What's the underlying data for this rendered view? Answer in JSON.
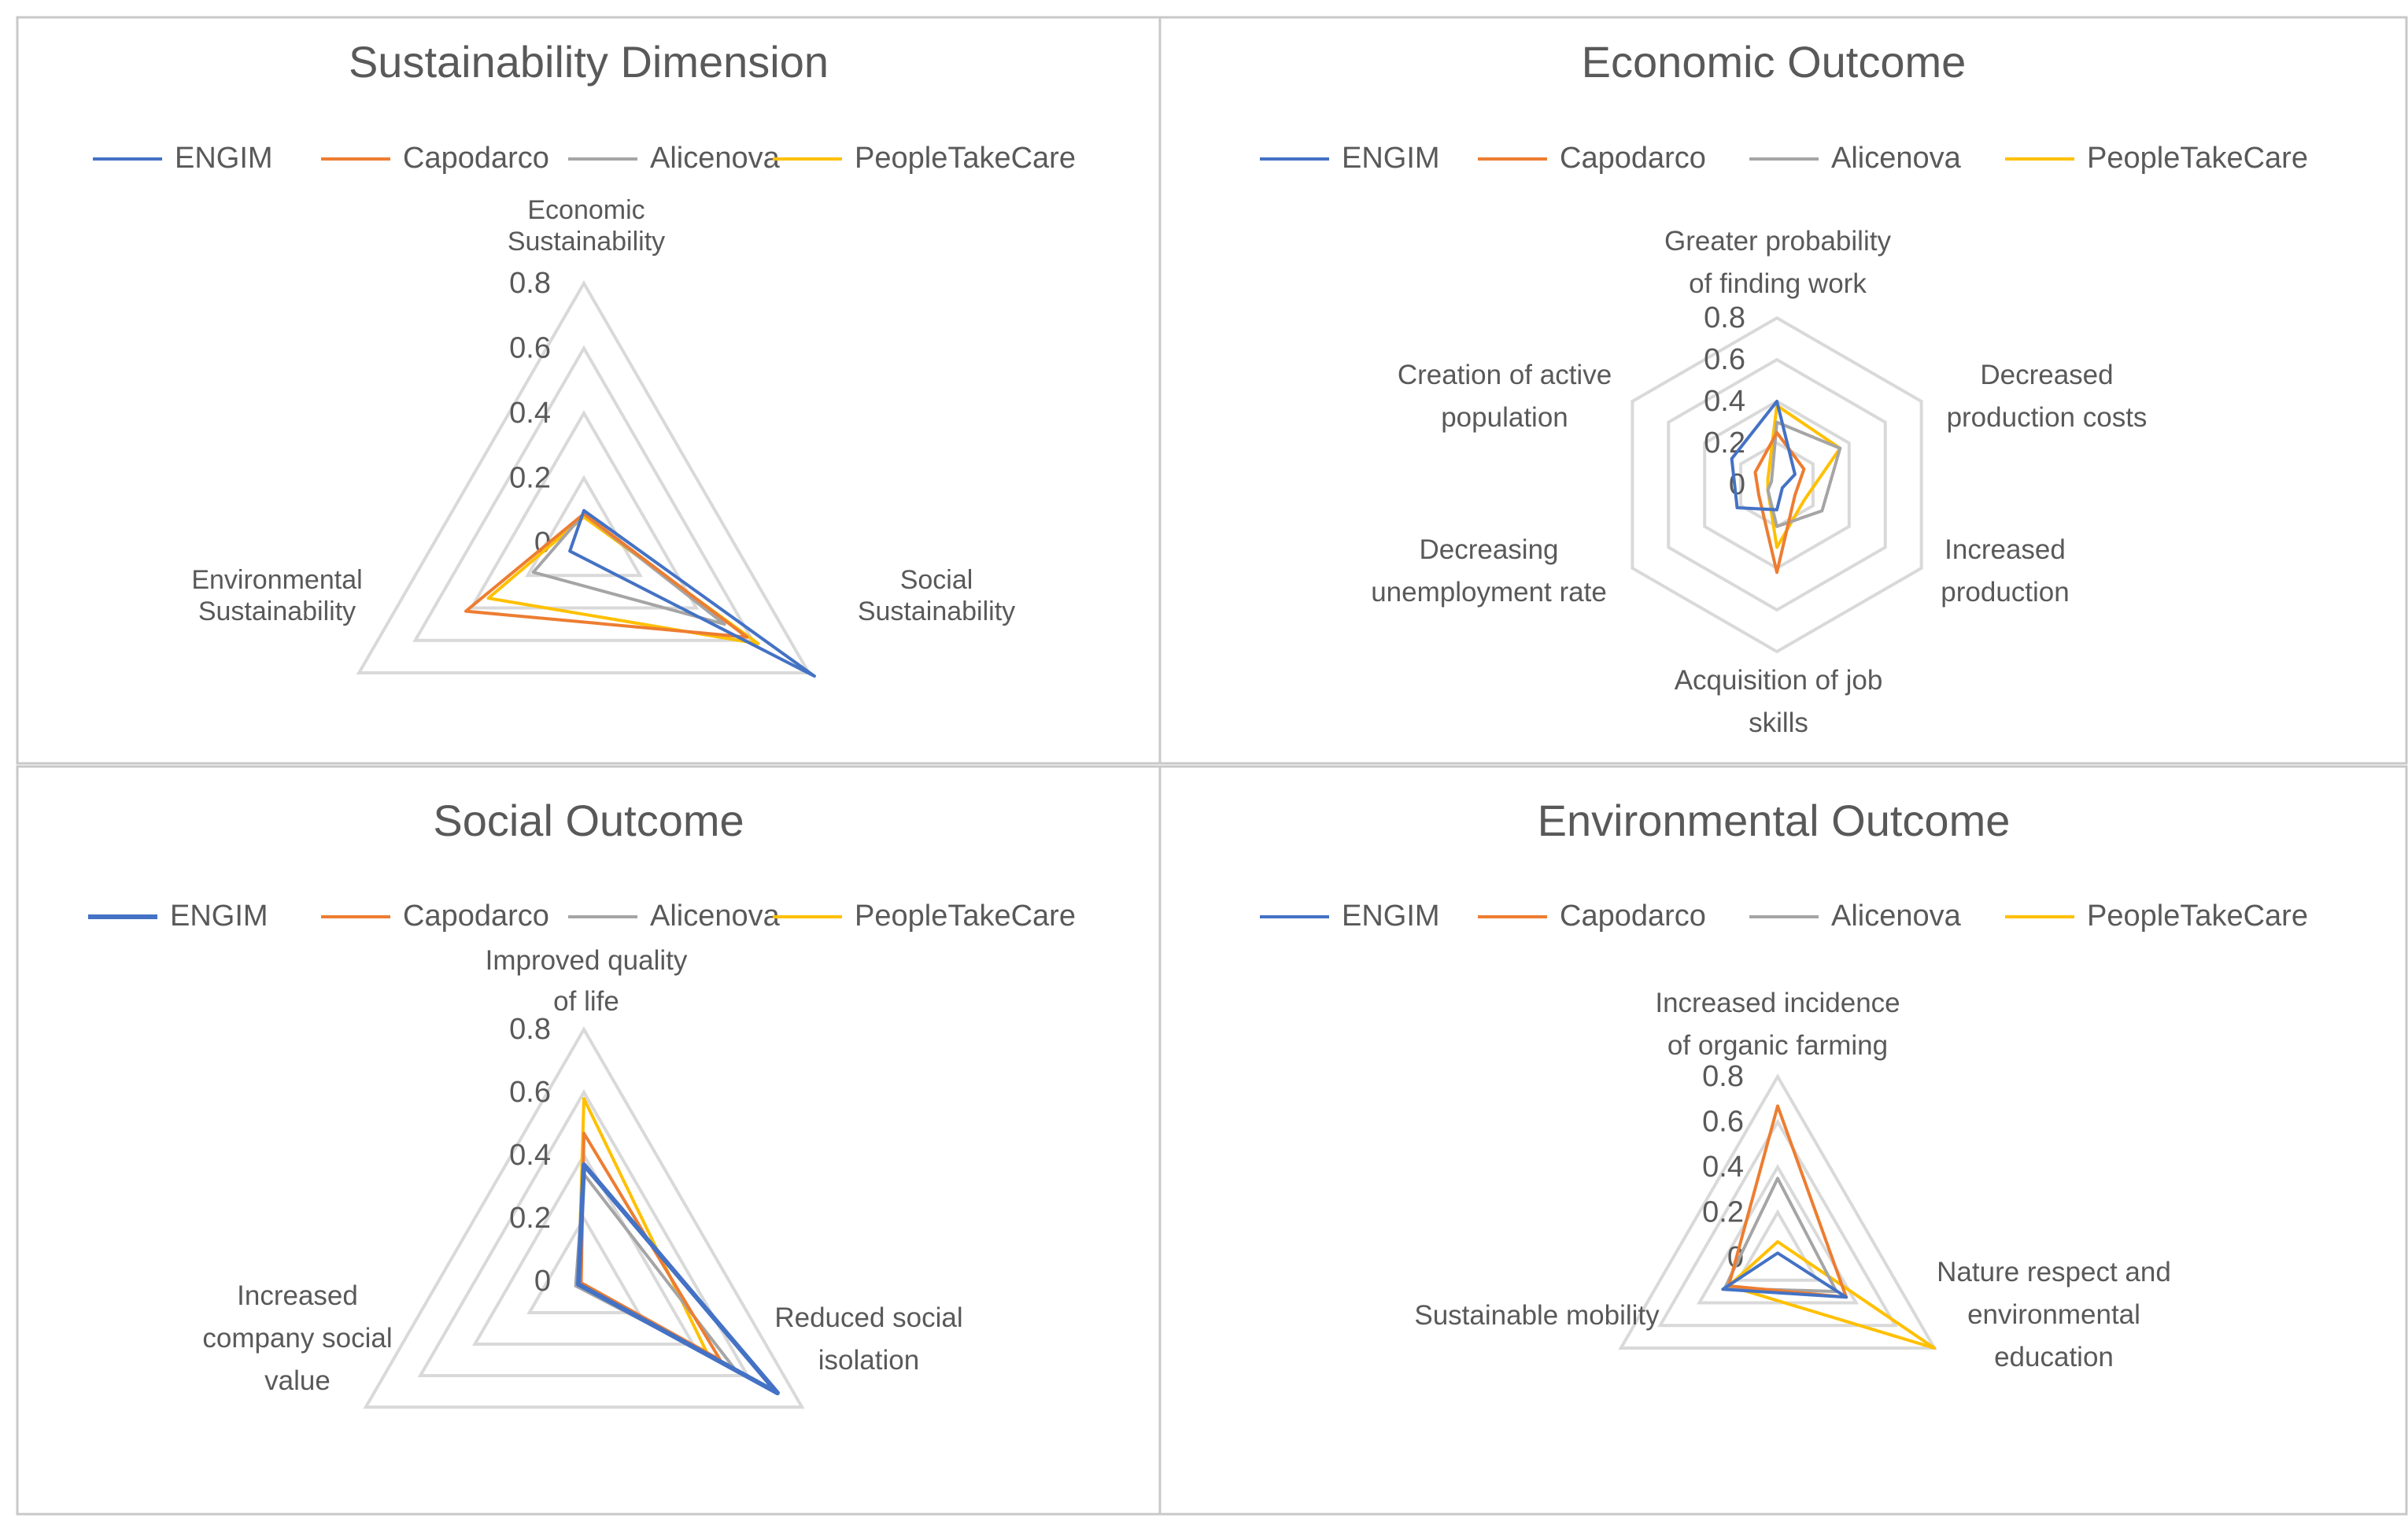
{
  "colors": {
    "ENGIM": "#4472c4",
    "Capodarco": "#ed7d31",
    "Alicenova": "#a5a5a5",
    "PeopleTakeCare": "#ffc000",
    "grid": "#d9d9d9",
    "text": "#595959",
    "panel_border": "#c8c8c8"
  },
  "chart_data": [
    {
      "type": "radar",
      "title": "Sustainability Dimension",
      "axes": [
        [
          "Economic",
          "Sustainability"
        ],
        [
          "Social",
          "Sustainability"
        ],
        [
          "Environmental",
          "Sustainability"
        ]
      ],
      "ticks": [
        "0",
        "0.2",
        "0.4",
        "0.6",
        "0.8"
      ],
      "range": [
        0,
        0.8
      ],
      "legend": "top",
      "series": [
        {
          "name": "ENGIM",
          "values": [
            0.1,
            0.82,
            0.05
          ]
        },
        {
          "name": "Capodarco",
          "values": [
            0.09,
            0.58,
            0.42
          ]
        },
        {
          "name": "Alicenova",
          "values": [
            0.09,
            0.5,
            0.18
          ]
        },
        {
          "name": "PeopleTakeCare",
          "values": [
            0.08,
            0.62,
            0.34
          ]
        }
      ]
    },
    {
      "type": "radar",
      "title": "Economic Outcome",
      "axes": [
        [
          "Greater probability",
          "of finding work"
        ],
        [
          "Decreased",
          "production costs"
        ],
        [
          "Increased",
          "production"
        ],
        [
          "Acquisition of job",
          "skills"
        ],
        [
          "Decreasing",
          "unemployment rate"
        ],
        [
          "Creation of active",
          "population"
        ]
      ],
      "ticks": [
        "0",
        "0.2",
        "0.4",
        "0.6",
        "0.8"
      ],
      "range": [
        0,
        0.8
      ],
      "legend": "top",
      "series": [
        {
          "name": "ENGIM",
          "values": [
            0.4,
            0.1,
            0.03,
            0.12,
            0.22,
            0.25
          ]
        },
        {
          "name": "Capodarco",
          "values": [
            0.25,
            0.15,
            0.1,
            0.42,
            0.1,
            0.12
          ]
        },
        {
          "name": "Alicenova",
          "values": [
            0.3,
            0.35,
            0.25,
            0.2,
            0.05,
            0.03
          ]
        },
        {
          "name": "PeopleTakeCare",
          "values": [
            0.38,
            0.35,
            0.15,
            0.3,
            0.05,
            0.05
          ]
        }
      ]
    },
    {
      "type": "radar",
      "title": "Social Outcome",
      "axes": [
        [
          "Improved quality",
          "of life"
        ],
        [
          "Reduced social",
          "isolation"
        ],
        [
          "Increased",
          "company social",
          "value"
        ]
      ],
      "ticks": [
        "0",
        "0.2",
        "0.4",
        "0.6",
        "0.8"
      ],
      "range": [
        0,
        0.8
      ],
      "legend": "top",
      "series": [
        {
          "name": "ENGIM",
          "values": [
            0.37,
            0.71,
            0.02
          ]
        },
        {
          "name": "Capodarco",
          "values": [
            0.47,
            0.5,
            0.01
          ]
        },
        {
          "name": "Alicenova",
          "values": [
            0.34,
            0.55,
            0.03
          ]
        },
        {
          "name": "PeopleTakeCare",
          "values": [
            0.58,
            0.45,
            0.02
          ]
        }
      ]
    },
    {
      "type": "radar",
      "title": "Environmental Outcome",
      "axes": [
        [
          "Increased incidence",
          "of organic farming"
        ],
        [
          "Nature respect and",
          "environmental",
          "education"
        ],
        [
          "Sustainable mobility"
        ]
      ],
      "ticks": [
        "0",
        "0.2",
        "0.4",
        "0.6",
        "0.8"
      ],
      "range": [
        0,
        0.8
      ],
      "legend": "top",
      "series": [
        {
          "name": "ENGIM",
          "values": [
            0.02,
            0.35,
            0.28
          ]
        },
        {
          "name": "Capodarco",
          "values": [
            0.67,
            0.35,
            0.25
          ]
        },
        {
          "name": "Alicenova",
          "values": [
            0.35,
            0.3,
            0.27
          ]
        },
        {
          "name": "PeopleTakeCare",
          "values": [
            0.07,
            0.8,
            0.25
          ]
        }
      ]
    }
  ]
}
